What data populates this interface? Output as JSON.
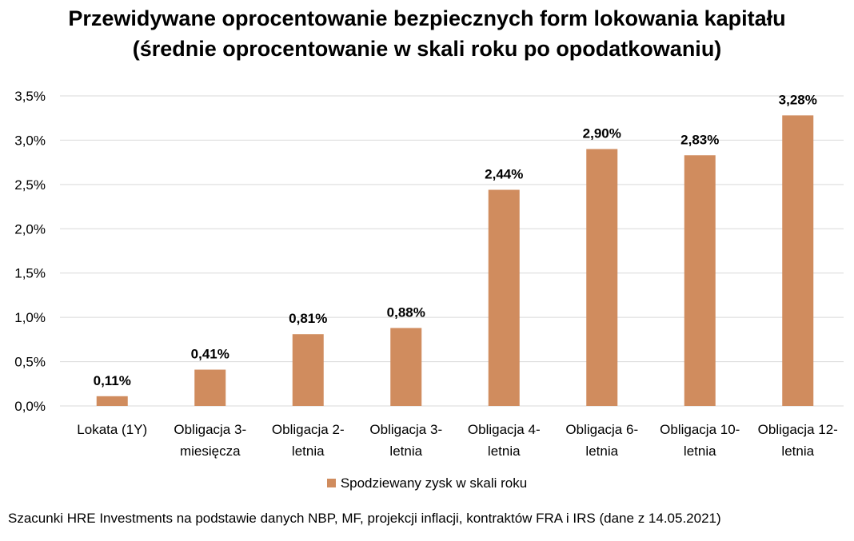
{
  "title": {
    "line1": "Przewidywane oprocentowanie bezpiecznych form lokowania kapitału",
    "line2": "(średnie oprocentowanie w skali roku po opodatkowaniu)"
  },
  "chart_data": {
    "type": "bar",
    "categories": [
      [
        "Lokata (1Y)"
      ],
      [
        "Obligacja 3-",
        "miesięcza"
      ],
      [
        "Obligacja 2-",
        "letnia"
      ],
      [
        "Obligacja 3-",
        "letnia"
      ],
      [
        "Obligacja 4-",
        "letnia"
      ],
      [
        "Obligacja 6-",
        "letnia"
      ],
      [
        "Obligacja 10-",
        "letnia"
      ],
      [
        "Obligacja 12-",
        "letnia"
      ]
    ],
    "series": [
      {
        "name": "Spodziewany zysk w skali roku",
        "values": [
          0.11,
          0.41,
          0.81,
          0.88,
          2.44,
          2.9,
          2.83,
          3.28
        ],
        "labels": [
          "0,11%",
          "0,41%",
          "0,81%",
          "0,88%",
          "2,44%",
          "2,90%",
          "2,83%",
          "3,28%"
        ],
        "color": "#D08C5E"
      }
    ],
    "yticks": [
      "0,0%",
      "0,5%",
      "1,0%",
      "1,5%",
      "2,0%",
      "2,5%",
      "3,0%",
      "3,5%"
    ],
    "ylim": [
      0,
      3.5
    ],
    "grid": true,
    "legend_position": "bottom"
  },
  "colors": {
    "bar": "#D08C5E",
    "grid": "#D9D9D9"
  },
  "footnote": "Szacunki HRE Investments na podstawie danych NBP, MF, projekcji inflacji, kontraktów FRA i IRS (dane z 14.05.2021)"
}
